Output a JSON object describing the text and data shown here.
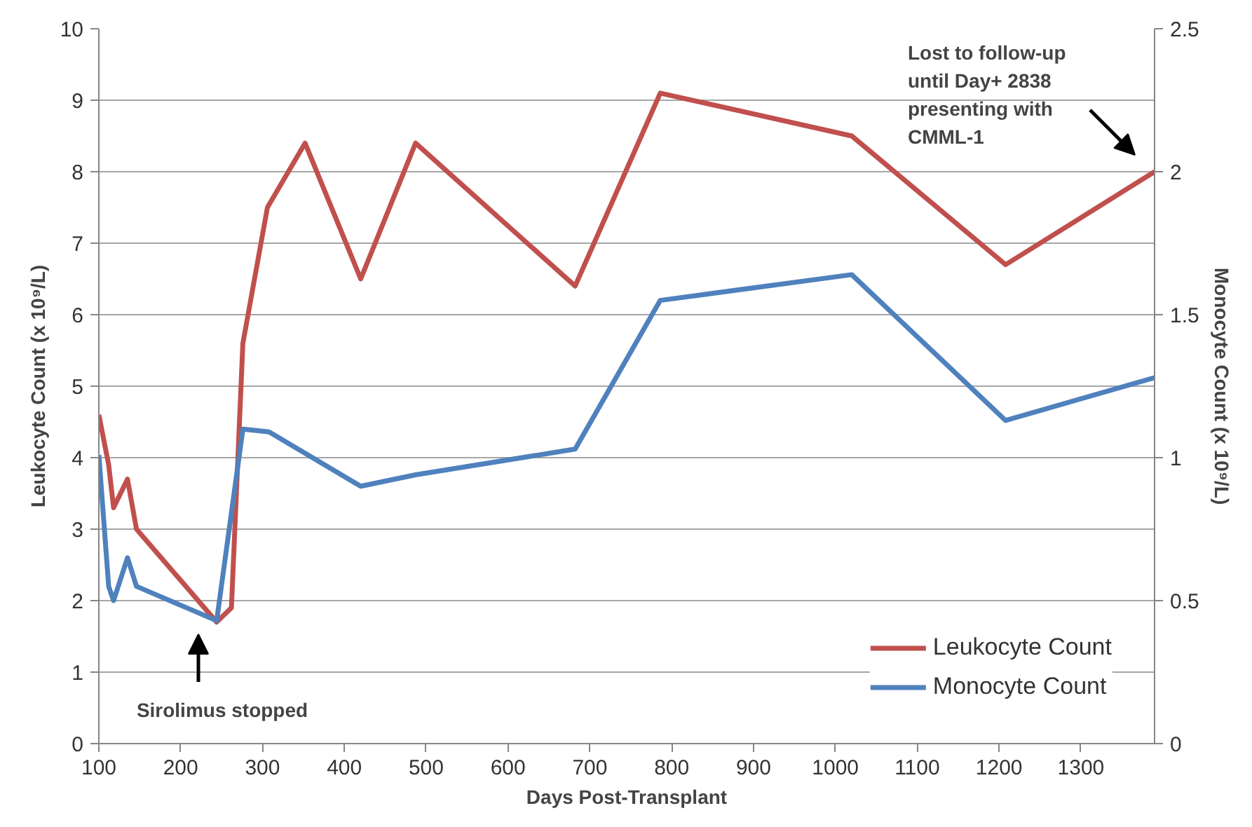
{
  "chart_data": {
    "type": "line",
    "xlabel": "Days Post-Transplant",
    "ylabel": "Leukocyte Count (x 10⁹/L)",
    "y2label": "Monocyte Count (x 10⁹/L)",
    "xlim": [
      100,
      1390
    ],
    "xticks": [
      100,
      200,
      300,
      400,
      500,
      600,
      700,
      800,
      900,
      1000,
      1100,
      1200,
      1300
    ],
    "ylim": [
      0,
      10
    ],
    "yticks": [
      0,
      1,
      2,
      3,
      4,
      5,
      6,
      7,
      8,
      9,
      10
    ],
    "y2lim": [
      0,
      2.5
    ],
    "y2ticks": [
      0,
      0.5,
      1,
      1.5,
      2,
      2.5
    ],
    "grid": "y",
    "legend": "bottom right",
    "line_style": "solid",
    "marker": "none",
    "series": [
      {
        "name": "Leukocyte Count",
        "color": "#c0504d",
        "x": [
          100,
          112,
          118,
          135,
          146,
          244,
          262,
          276,
          306,
          352,
          420,
          487,
          682,
          786,
          1020,
          1208,
          1390
        ],
        "values": [
          4.6,
          3.9,
          3.3,
          3.7,
          3.0,
          1.7,
          1.9,
          5.6,
          7.5,
          8.4,
          6.5,
          8.4,
          6.4,
          9.1,
          8.5,
          6.7,
          8.0
        ]
      },
      {
        "name": "Monocyte Count",
        "color": "#4f81bd",
        "axis": "y2",
        "x": [
          100,
          112,
          118,
          135,
          146,
          244,
          276,
          308,
          420,
          487,
          682,
          786,
          1020,
          1208,
          1390
        ],
        "values": [
          1.01,
          0.55,
          0.5,
          0.65,
          0.55,
          0.43,
          1.1,
          1.09,
          0.9,
          0.94,
          1.03,
          1.55,
          1.64,
          1.13,
          1.28
        ]
      }
    ],
    "annotations": [
      "Sirolimus stopped",
      "Lost to follow-up\nuntil Day+ 2838\npresenting with\nCMML-1"
    ]
  }
}
